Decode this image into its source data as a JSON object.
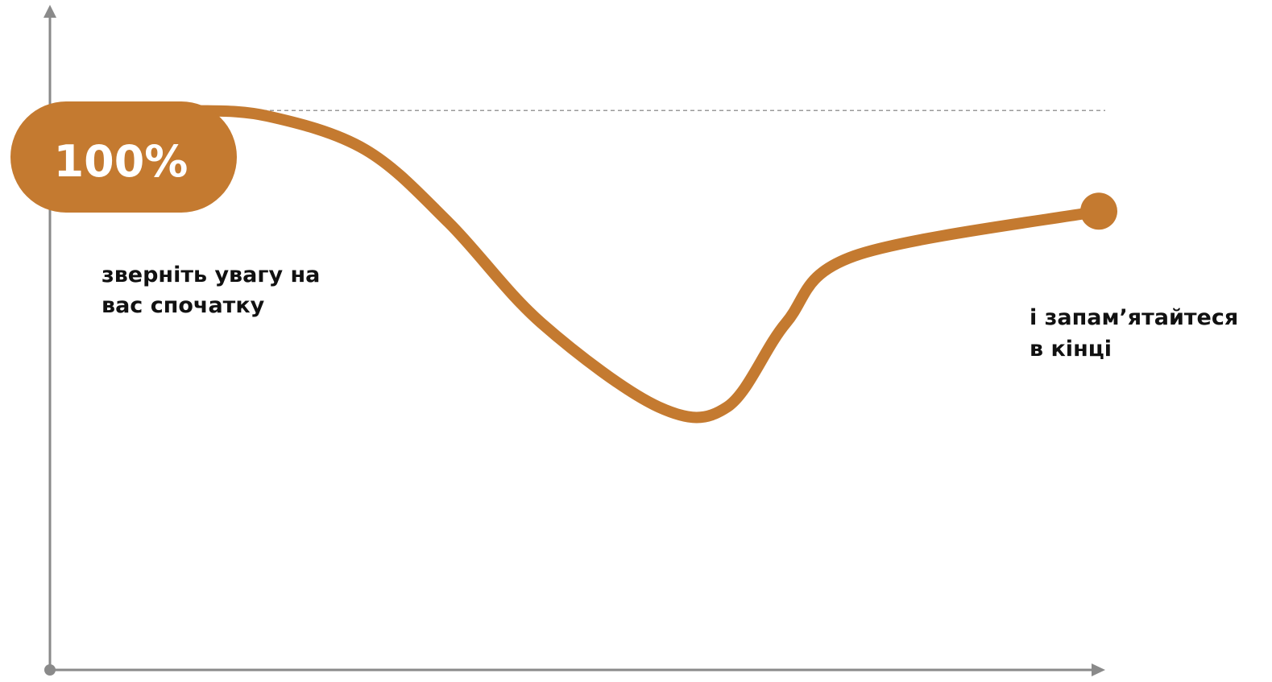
{
  "chart_data": {
    "type": "line",
    "title": "",
    "xlabel": "",
    "ylabel": "",
    "grid": false,
    "start_label": "100%",
    "reference_value": 100,
    "ylim": [
      0,
      115
    ],
    "xlim": [
      0,
      100
    ],
    "series": [
      {
        "x": [
          0,
          7,
          15,
          25,
          33.5,
          43,
          55,
          62,
          68,
          75,
          100
        ],
        "values": [
          100,
          100,
          99,
          93,
          80,
          62,
          47,
          47,
          62,
          74,
          82
        ]
      }
    ],
    "annotations": [
      {
        "lines": [
          "зверніть увагу на",
          "вас спочатку"
        ]
      },
      {
        "lines": [
          "і запам’ятайтеся",
          "в кінці"
        ]
      }
    ],
    "colors": {
      "line": "#C47A30",
      "axis": "#8A8A8A",
      "reference": "#9A9A9A",
      "text": "#111111",
      "label_text": "#FFFFFF"
    }
  }
}
